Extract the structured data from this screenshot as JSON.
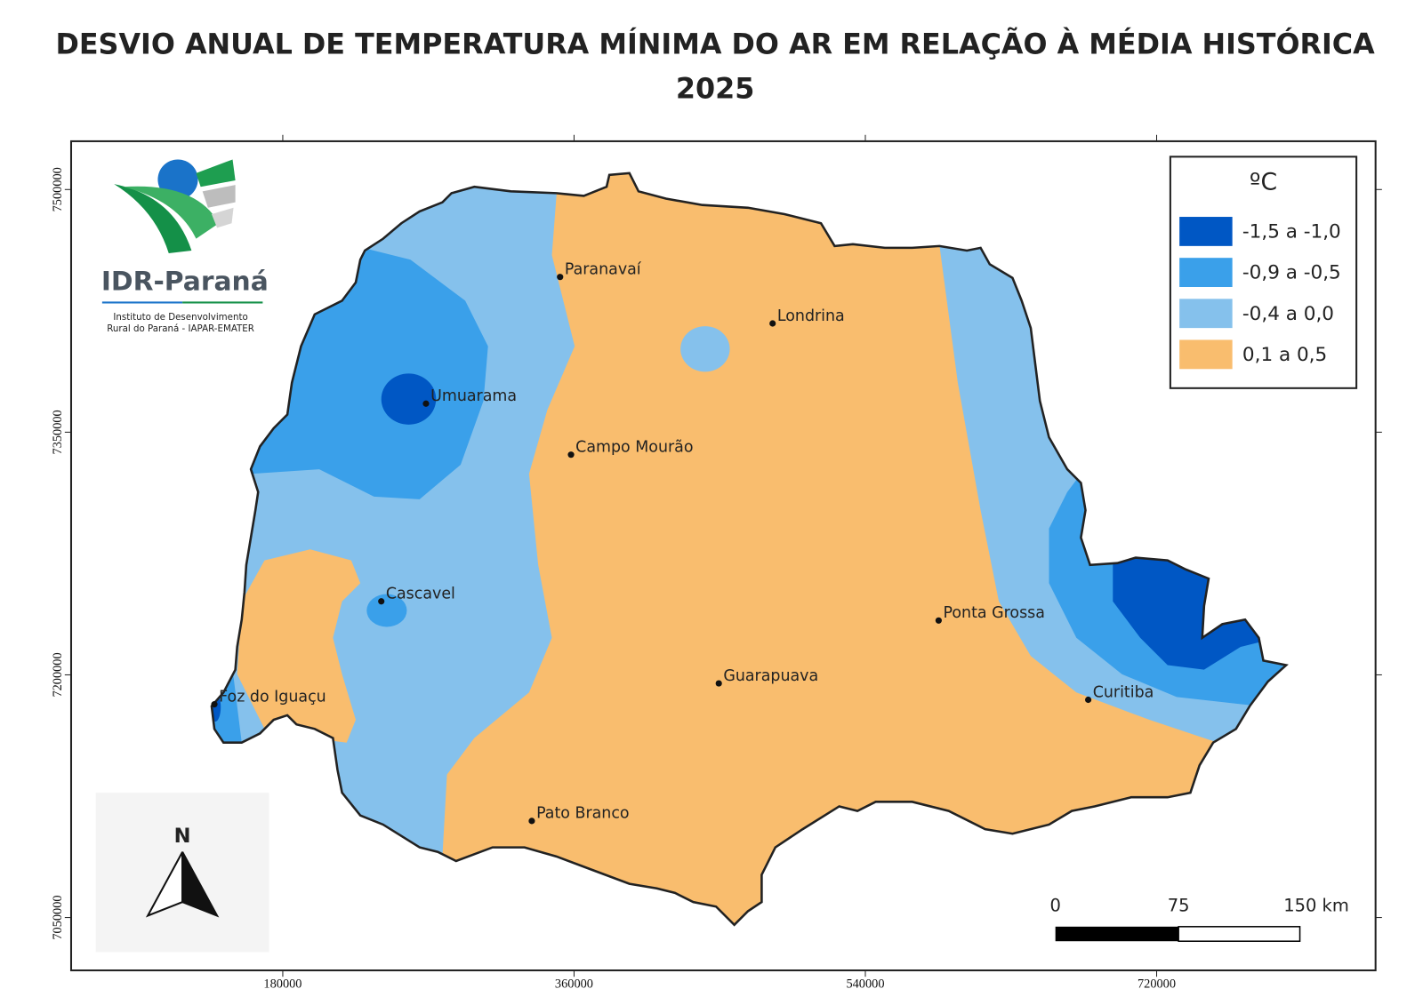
{
  "header": {
    "title": "DESVIO ANUAL DE TEMPERATURA MÍNIMA DO AR EM RELAÇÃO À MÉDIA HISTÓRICA",
    "subtitle": "2025"
  },
  "logo": {
    "name": "IDR-Paraná",
    "line1": "Instituto de Desenvolvimento",
    "line2": "Rural do Paraná - IAPAR-EMATER"
  },
  "legend": {
    "title": "ºC",
    "items": [
      {
        "label": "-1,5 a -1,0",
        "color": "#0057c4"
      },
      {
        "label": "-0,9 a -0,5",
        "color": "#3aa0ea"
      },
      {
        "label": "-0,4 a 0,0",
        "color": "#85c1ec"
      },
      {
        "label": "0,1 a 0,5",
        "color": "#f9bd6e"
      }
    ]
  },
  "cities": [
    "Paranavaí",
    "Londrina",
    "Umuarama",
    "Campo Mourão",
    "Cascavel",
    "Ponta Grossa",
    "Guarapuava",
    "Curitiba",
    "Foz do Iguaçu",
    "Pato Branco"
  ],
  "axes": {
    "xticks": [
      180000,
      360000,
      540000,
      720000
    ],
    "yticks": [
      7050000,
      7200000,
      7350000,
      7500000
    ]
  },
  "scale_bar": [
    "0",
    "75",
    "150 km"
  ],
  "north": "N"
}
